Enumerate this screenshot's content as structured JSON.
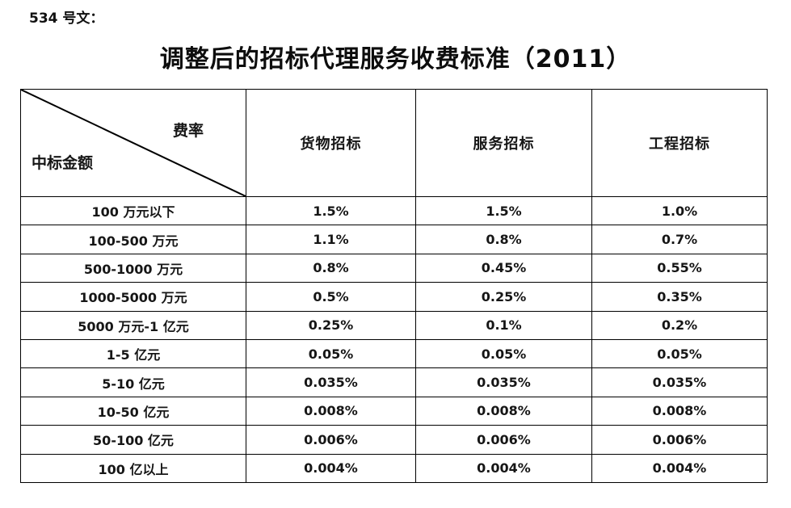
{
  "doc": {
    "ref_label": "534 号文：",
    "title": "调整后的招标代理服务收费标准（2011）"
  },
  "table": {
    "corner": {
      "top_right": "费率",
      "bottom_left": "中标金额"
    },
    "columns": [
      "货物招标",
      "服务招标",
      "工程招标"
    ],
    "rows": [
      {
        "label": "100 万元以下",
        "values": [
          "1.5%",
          "1.5%",
          "1.0%"
        ]
      },
      {
        "label": "100-500 万元",
        "values": [
          "1.1%",
          "0.8%",
          "0.7%"
        ]
      },
      {
        "label": "500-1000 万元",
        "values": [
          "0.8%",
          "0.45%",
          "0.55%"
        ]
      },
      {
        "label": "1000-5000 万元",
        "values": [
          "0.5%",
          "0.25%",
          "0.35%"
        ]
      },
      {
        "label": "5000 万元-1 亿元",
        "values": [
          "0.25%",
          "0.1%",
          "0.2%"
        ]
      },
      {
        "label": "1-5 亿元",
        "values": [
          "0.05%",
          "0.05%",
          "0.05%"
        ]
      },
      {
        "label": "5-10 亿元",
        "values": [
          "0.035%",
          "0.035%",
          "0.035%"
        ]
      },
      {
        "label": "10-50 亿元",
        "values": [
          "0.008%",
          "0.008%",
          "0.008%"
        ]
      },
      {
        "label": "50-100 亿元",
        "values": [
          "0.006%",
          "0.006%",
          "0.006%"
        ]
      },
      {
        "label": "100 亿以上",
        "values": [
          "0.004%",
          "0.004%",
          "0.004%"
        ]
      }
    ]
  },
  "colors": {
    "background": "#ffffff",
    "text": "#161616",
    "border": "#000000"
  }
}
